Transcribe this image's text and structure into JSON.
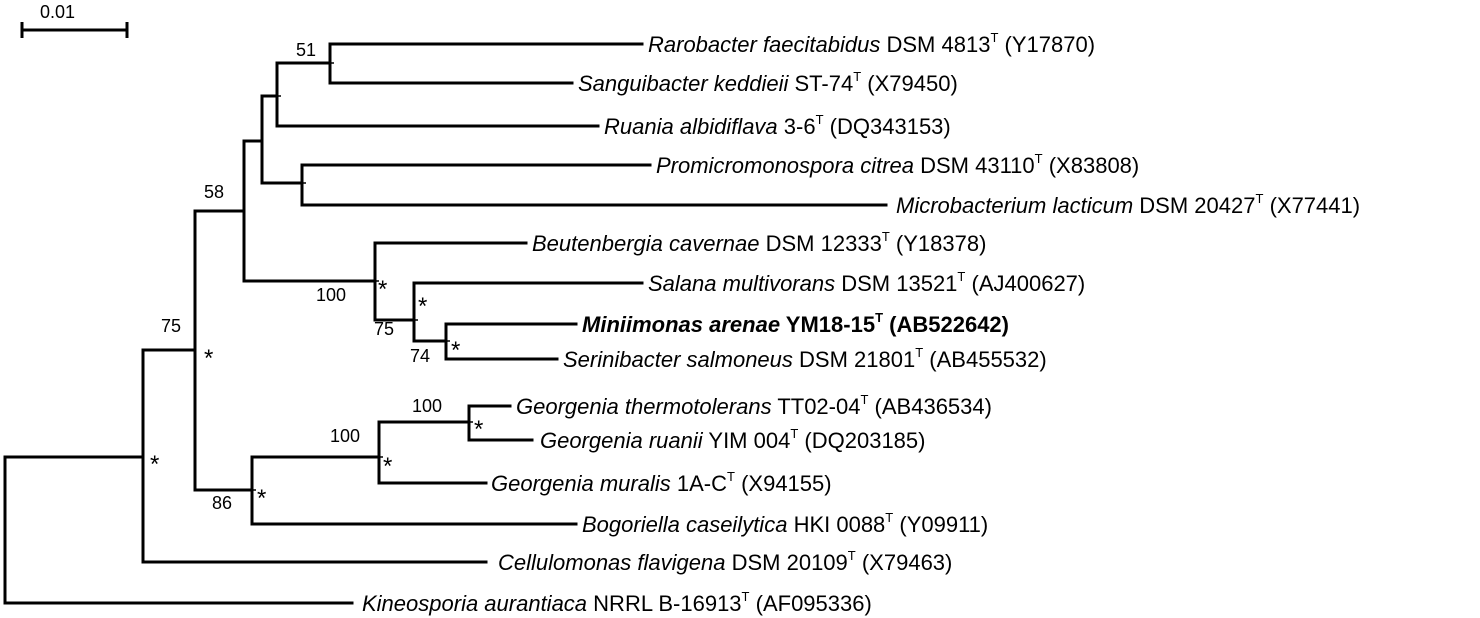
{
  "scale_bar": {
    "label": "0.01"
  },
  "taxa": [
    {
      "species": "Rarobacter faecitabidus",
      "strain": "DSM 4813",
      "sup": "T",
      "accession": "(Y17870)"
    },
    {
      "species": "Sanguibacter keddieii",
      "strain": "ST-74",
      "sup": "T",
      "accession": "(X79450)"
    },
    {
      "species": "Ruania albidiflava",
      "strain": "3-6",
      "sup": "T",
      "accession": "(DQ343153)"
    },
    {
      "species": "Promicromonospora citrea",
      "strain": "DSM 43110",
      "sup": "T",
      "accession": "(X83808)"
    },
    {
      "species": "Microbacterium lacticum",
      "strain": "DSM 20427",
      "sup": "T",
      "accession": "(X77441)"
    },
    {
      "species": "Beutenbergia cavernae",
      "strain": "DSM 12333",
      "sup": "T",
      "accession": "(Y18378)"
    },
    {
      "species": "Salana multivorans",
      "strain": "DSM 13521",
      "sup": "T",
      "accession": "(AJ400627)"
    },
    {
      "species": "Miniimonas arenae",
      "strain": "YM18-15",
      "sup": "T",
      "accession": "(AB522642)"
    },
    {
      "species": "Serinibacter salmoneus",
      "strain": "DSM 21801",
      "sup": "T",
      "accession": "(AB455532)"
    },
    {
      "species": "Georgenia thermotolerans",
      "strain": "TT02-04",
      "sup": "T",
      "accession": "(AB436534)"
    },
    {
      "species": "Georgenia ruanii",
      "strain": "YIM 004",
      "sup": "T",
      "accession": "(DQ203185)"
    },
    {
      "species": "Georgenia muralis",
      "strain": "1A-C",
      "sup": "T",
      "accession": "(X94155)"
    },
    {
      "species": "Bogoriella caseilytica",
      "strain": "HKI 0088",
      "sup": "T",
      "accession": "(Y09911)"
    },
    {
      "species": "Cellulomonas flavigena",
      "strain": "DSM 20109",
      "sup": "T",
      "accession": "(X79463)"
    },
    {
      "species": "Kineosporia aurantiaca",
      "strain": "NRRL B-16913",
      "sup": "T",
      "accession": "(AF095336)"
    }
  ],
  "bootstrap": [
    "51",
    "58",
    "100",
    "75",
    "74",
    "75",
    "100",
    "100",
    "86"
  ],
  "node_marker": "*"
}
